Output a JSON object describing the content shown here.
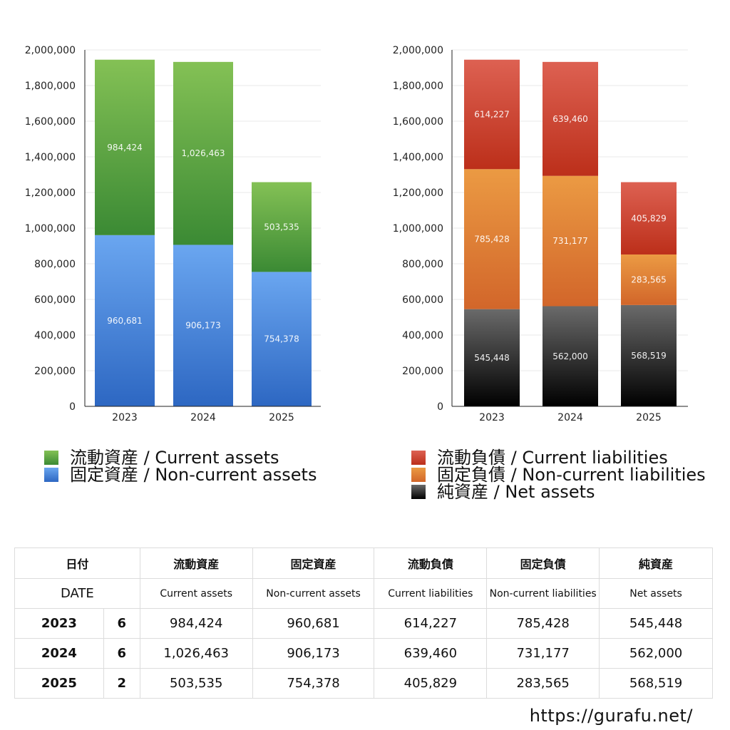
{
  "colors": {
    "current_assets": [
      "#84c155",
      "#3b8a34"
    ],
    "non_current_assets": [
      "#6aa6f0",
      "#2d67c2"
    ],
    "current_liabilities": [
      "#dd6152",
      "#bc2f1a"
    ],
    "non_current_liabilities": [
      "#eb9a43",
      "#d2662a"
    ],
    "net_assets": [
      "#6a6a6a",
      "#000000"
    ]
  },
  "chart_data": [
    {
      "type": "bar",
      "stacked": true,
      "categories": [
        "2023",
        "2024",
        "2025"
      ],
      "ylim": [
        0,
        2000000
      ],
      "yticks": [
        "0",
        "200,000",
        "400,000",
        "600,000",
        "800,000",
        "1,000,000",
        "1,200,000",
        "1,400,000",
        "1,600,000",
        "1,800,000",
        "2,000,000"
      ],
      "grid": true,
      "series": [
        {
          "name": "固定資産 / Non-current assets",
          "key": "non_current_assets",
          "values": [
            960681,
            906173,
            754378
          ],
          "labels": [
            "960,681",
            "906,173",
            "754,378"
          ]
        },
        {
          "name": "流動資産 / Current assets",
          "key": "current_assets",
          "values": [
            984424,
            1026463,
            503535
          ],
          "labels": [
            "984,424",
            "1,026,463",
            "503,535"
          ]
        }
      ]
    },
    {
      "type": "bar",
      "stacked": true,
      "categories": [
        "2023",
        "2024",
        "2025"
      ],
      "ylim": [
        0,
        2000000
      ],
      "yticks": [
        "0",
        "200,000",
        "400,000",
        "600,000",
        "800,000",
        "1,000,000",
        "1,200,000",
        "1,400,000",
        "1,600,000",
        "1,800,000",
        "2,000,000"
      ],
      "grid": true,
      "series": [
        {
          "name": "純資産 / Net assets",
          "key": "net_assets",
          "values": [
            545448,
            562000,
            568519
          ],
          "labels": [
            "545,448",
            "562,000",
            "568,519"
          ]
        },
        {
          "name": "固定負債 / Non-current liabilities",
          "key": "non_current_liabilities",
          "values": [
            785428,
            731177,
            283565
          ],
          "labels": [
            "785,428",
            "731,177",
            "283,565"
          ]
        },
        {
          "name": "流動負債 / Current liabilities",
          "key": "current_liabilities",
          "values": [
            614227,
            639460,
            405829
          ],
          "labels": [
            "614,227",
            "639,460",
            "405,829"
          ]
        }
      ]
    }
  ],
  "legend_left": [
    {
      "label": "流動資産 / Current assets",
      "key": "current_assets"
    },
    {
      "label": "固定資産 / Non-current assets",
      "key": "non_current_assets"
    }
  ],
  "legend_right": [
    {
      "label": "流動負債 / Current liabilities",
      "key": "current_liabilities"
    },
    {
      "label": "固定負債 / Non-current liabilities",
      "key": "non_current_liabilities"
    },
    {
      "label": "純資産 / Net assets",
      "key": "net_assets"
    }
  ],
  "table": {
    "header_jp": {
      "date": "日付",
      "ca": "流動資産",
      "nca": "固定資産",
      "cl": "流動負債",
      "ncl": "固定負債",
      "na": "純資産"
    },
    "header_en": {
      "date": "DATE",
      "ca": "Current assets",
      "nca": "Non-current assets",
      "cl": "Current liabilities",
      "ncl": "Non-current liabilities",
      "na": "Net assets"
    },
    "rows": [
      {
        "year": "2023",
        "month": "6",
        "ca": "984,424",
        "nca": "960,681",
        "cl": "614,227",
        "ncl": "785,428",
        "na": "545,448"
      },
      {
        "year": "2024",
        "month": "6",
        "ca": "1,026,463",
        "nca": "906,173",
        "cl": "639,460",
        "ncl": "731,177",
        "na": "562,000"
      },
      {
        "year": "2025",
        "month": "2",
        "ca": "503,535",
        "nca": "754,378",
        "cl": "405,829",
        "ncl": "283,565",
        "na": "568,519"
      }
    ]
  },
  "footer": {
    "url": "https://gurafu.net/"
  }
}
